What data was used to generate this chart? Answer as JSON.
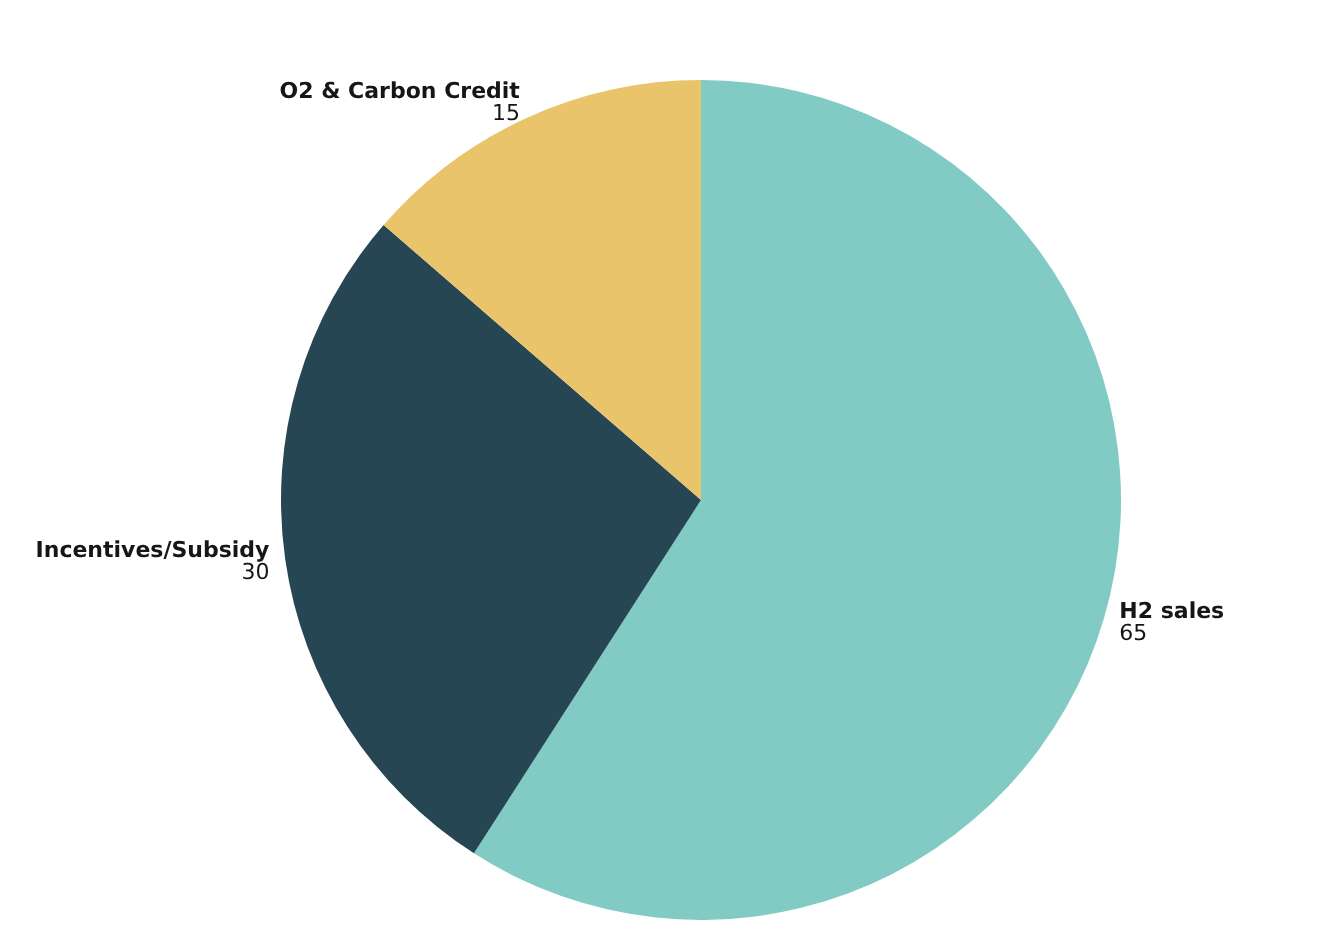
{
  "chart_data": {
    "type": "pie",
    "categories": [
      "H2 sales",
      "Incentives/Subsidy",
      "O2 & Carbon Credit"
    ],
    "values": [
      65,
      30,
      15
    ],
    "colors": [
      "#81cbc4",
      "#264653",
      "#e9c46a"
    ],
    "data_labels": true,
    "legend": false
  }
}
